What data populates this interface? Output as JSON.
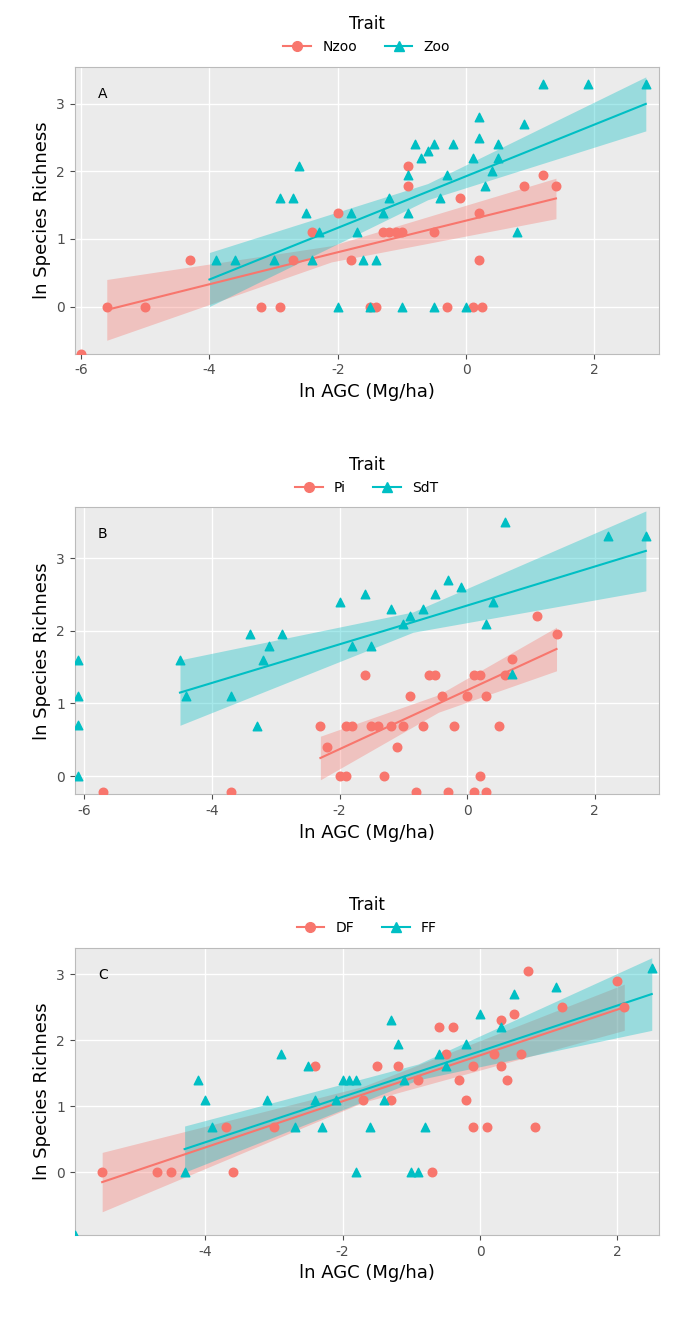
{
  "chart_data": [
    {
      "type": "scatter",
      "x_label": "ln AGC (Mg/ha)",
      "y_label": "ln Species Richness",
      "legend_title": "Trait",
      "legend": "top",
      "grid": true,
      "annotations": [
        {
          "text": "A"
        }
      ],
      "xlim": [
        -6.1,
        3.0
      ],
      "ylim": [
        -0.7,
        3.55
      ],
      "xticks": [
        -6,
        -4,
        -2,
        0,
        2
      ],
      "yticks": [
        0,
        1,
        2,
        3
      ],
      "series": [
        {
          "name": "Nzoo",
          "color": "#F8766D",
          "marker": "circle",
          "x": [
            -6.0,
            -5.6,
            -5.0,
            -4.3,
            -3.2,
            -2.9,
            -2.7,
            -2.4,
            -2.0,
            -1.8,
            -1.5,
            -1.4,
            -1.3,
            -1.2,
            -1.1,
            -1.0,
            -0.9,
            -0.9,
            -0.5,
            -0.3,
            -0.1,
            0.1,
            0.2,
            0.2,
            0.25,
            0.9,
            1.2,
            1.4
          ],
          "values": [
            -0.7,
            0,
            0,
            0.69,
            0,
            0,
            0.69,
            1.1,
            1.39,
            0.69,
            0,
            0,
            1.1,
            1.1,
            1.1,
            1.1,
            1.79,
            2.08,
            1.1,
            0,
            1.61,
            0,
            1.39,
            0.69,
            0,
            1.79,
            1.95,
            1.79
          ],
          "fit": {
            "x": [
              -5.6,
              -2.1,
              1.4
            ],
            "y": [
              -0.05,
              0.78,
              1.6
            ],
            "lower": [
              -0.5,
              0.66,
              1.3
            ],
            "upper": [
              0.4,
              0.9,
              1.9
            ]
          }
        },
        {
          "name": "Zoo",
          "color": "#00BFC4",
          "marker": "triangle",
          "x": [
            -3.9,
            -3.6,
            -3.0,
            -2.9,
            -2.7,
            -2.6,
            -2.5,
            -2.4,
            -2.3,
            -2.0,
            -1.8,
            -1.7,
            -1.6,
            -1.5,
            -1.4,
            -1.3,
            -1.2,
            -1.0,
            -0.9,
            -0.9,
            -0.8,
            -0.7,
            -0.6,
            -0.5,
            -0.5,
            -0.4,
            -0.3,
            -0.2,
            0.0,
            0.1,
            0.2,
            0.2,
            0.3,
            0.4,
            0.5,
            0.5,
            0.8,
            0.9,
            1.2,
            1.9,
            2.8
          ],
          "values": [
            0.69,
            0.69,
            0.69,
            1.61,
            1.61,
            2.08,
            1.39,
            0.69,
            1.1,
            0,
            1.39,
            1.1,
            0.69,
            0,
            0.69,
            1.39,
            1.61,
            0,
            1.39,
            1.95,
            2.4,
            2.2,
            2.3,
            2.4,
            0,
            1.61,
            1.95,
            2.4,
            0,
            2.2,
            2.5,
            2.8,
            1.79,
            2.0,
            2.2,
            2.4,
            1.1,
            2.7,
            3.3,
            3.3,
            3.3
          ],
          "fit": {
            "x": [
              -4.0,
              -0.6,
              2.8
            ],
            "y": [
              0.4,
              1.7,
              3.0
            ],
            "lower": [
              0.0,
              1.58,
              2.6
            ],
            "upper": [
              0.8,
              1.82,
              3.4
            ]
          }
        }
      ]
    },
    {
      "type": "scatter",
      "x_label": "ln AGC (Mg/ha)",
      "y_label": "ln Species Richness",
      "legend_title": "Trait",
      "legend": "top",
      "grid": true,
      "annotations": [
        {
          "text": "B"
        }
      ],
      "xlim": [
        -6.15,
        3.0
      ],
      "ylim": [
        -0.25,
        3.7
      ],
      "xticks": [
        -6,
        -4,
        -2,
        0,
        2
      ],
      "yticks": [
        0,
        1,
        2,
        3
      ],
      "series": [
        {
          "name": "Pi",
          "color": "#F8766D",
          "marker": "circle",
          "x": [
            -5.7,
            -3.7,
            -2.3,
            -2.2,
            -2.0,
            -1.9,
            -1.9,
            -1.8,
            -1.6,
            -1.5,
            -1.4,
            -1.3,
            -1.2,
            -1.1,
            -1.0,
            -0.9,
            -0.8,
            -0.7,
            -0.6,
            -0.5,
            -0.4,
            -0.3,
            -0.2,
            0.0,
            0.1,
            0.2,
            0.2,
            0.3,
            0.5,
            0.6,
            0.7,
            1.1,
            1.4,
            0.1,
            0.3
          ],
          "values": [
            -0.22,
            -0.22,
            0.69,
            0.4,
            0,
            0,
            0.69,
            0.69,
            1.39,
            0.69,
            0.69,
            0,
            0.69,
            0.4,
            0.69,
            1.1,
            -0.22,
            0.69,
            1.39,
            1.39,
            1.1,
            -0.22,
            0.69,
            1.1,
            1.39,
            1.39,
            0,
            1.1,
            0.69,
            1.39,
            1.61,
            2.2,
            1.95,
            -0.22,
            -0.22
          ],
          "fit": {
            "x": [
              -2.3,
              -0.45,
              1.4
            ],
            "y": [
              0.25,
              1.0,
              1.75
            ],
            "lower": [
              -0.05,
              0.88,
              1.45
            ],
            "upper": [
              0.55,
              1.12,
              2.05
            ]
          }
        },
        {
          "name": "SdT",
          "color": "#00BFC4",
          "marker": "triangle",
          "x": [
            -6.1,
            -6.1,
            -6.1,
            -6.1,
            -4.5,
            -4.4,
            -3.7,
            -3.4,
            -3.3,
            -3.2,
            -3.1,
            -2.9,
            -2.0,
            -1.8,
            -1.6,
            -1.5,
            -1.2,
            -1.0,
            -0.9,
            -0.7,
            -0.5,
            -0.3,
            -0.1,
            0.3,
            0.4,
            0.6,
            0.7,
            2.2,
            2.8
          ],
          "values": [
            1.6,
            1.1,
            0.7,
            0.0,
            1.6,
            1.1,
            1.1,
            1.95,
            0.69,
            1.6,
            1.79,
            1.95,
            2.4,
            1.79,
            2.5,
            1.79,
            2.3,
            2.1,
            2.2,
            2.3,
            2.5,
            2.7,
            2.6,
            2.1,
            2.4,
            3.5,
            1.4,
            3.3,
            3.3
          ],
          "fit": {
            "x": [
              -4.5,
              -0.85,
              2.8
            ],
            "y": [
              1.15,
              2.12,
              3.1
            ],
            "lower": [
              0.7,
              1.98,
              2.55
            ],
            "upper": [
              1.6,
              2.26,
              3.65
            ]
          }
        }
      ]
    },
    {
      "type": "scatter",
      "x_label": "ln AGC (Mg/ha)",
      "y_label": "ln Species Richness",
      "legend_title": "Trait",
      "legend": "top",
      "grid": true,
      "annotations": [
        {
          "text": "C"
        }
      ],
      "xlim": [
        -5.9,
        2.6
      ],
      "ylim": [
        -0.95,
        3.4
      ],
      "xticks": [
        -4,
        -2,
        0,
        2
      ],
      "yticks": [
        0,
        1,
        2,
        3
      ],
      "series": [
        {
          "name": "DF",
          "color": "#F8766D",
          "marker": "circle",
          "x": [
            -5.5,
            -4.7,
            -4.5,
            -3.7,
            -3.6,
            -3.0,
            -2.4,
            -1.7,
            -1.5,
            -1.3,
            -1.2,
            -0.9,
            -0.7,
            -0.6,
            -0.5,
            -0.4,
            -0.3,
            -0.2,
            -0.1,
            -0.1,
            0.1,
            0.2,
            0.3,
            0.3,
            0.4,
            0.5,
            0.6,
            0.7,
            0.8,
            1.2,
            2.0,
            2.1
          ],
          "values": [
            0,
            0,
            0,
            0.69,
            0,
            0.69,
            1.61,
            1.1,
            1.61,
            1.1,
            1.61,
            1.39,
            0,
            2.2,
            1.79,
            2.2,
            1.39,
            1.1,
            0.69,
            1.61,
            0.69,
            1.79,
            1.61,
            2.3,
            1.39,
            2.4,
            1.79,
            3.05,
            0.69,
            2.5,
            2.9,
            2.5
          ],
          "fit": {
            "x": [
              -5.5,
              -1.7,
              2.1
            ],
            "y": [
              -0.15,
              1.18,
              2.5
            ],
            "lower": [
              -0.6,
              1.06,
              2.15
            ],
            "upper": [
              0.3,
              1.3,
              2.85
            ]
          }
        },
        {
          "name": "FF",
          "color": "#00BFC4",
          "marker": "triangle",
          "x": [
            -5.9,
            -4.3,
            -4.1,
            -4.0,
            -3.9,
            -3.1,
            -2.9,
            -2.7,
            -2.5,
            -2.4,
            -2.3,
            -2.1,
            -2.0,
            -1.9,
            -1.8,
            -1.8,
            -1.6,
            -1.4,
            -1.3,
            -1.2,
            -1.1,
            -1.0,
            -0.9,
            -0.8,
            -0.6,
            -0.5,
            -0.2,
            0.0,
            0.3,
            0.5,
            1.1,
            2.5
          ],
          "values": [
            -0.95,
            0,
            1.39,
            1.1,
            0.69,
            1.1,
            1.79,
            0.69,
            1.61,
            1.1,
            0.69,
            1.1,
            1.39,
            1.39,
            1.39,
            0,
            0.69,
            1.1,
            2.3,
            1.95,
            1.39,
            0,
            0,
            0.69,
            1.79,
            1.61,
            1.95,
            2.4,
            2.2,
            2.7,
            2.8,
            3.1
          ],
          "fit": {
            "x": [
              -4.3,
              -0.9,
              2.5
            ],
            "y": [
              0.35,
              1.52,
              2.7
            ],
            "lower": [
              0.0,
              1.4,
              2.15
            ],
            "upper": [
              0.7,
              1.64,
              3.25
            ]
          }
        }
      ]
    }
  ]
}
